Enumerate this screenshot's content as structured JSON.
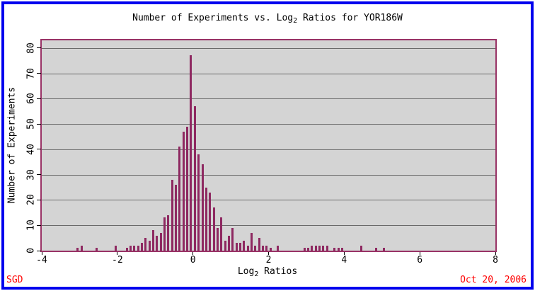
{
  "window": {
    "border_color": "#0000EE",
    "background": "#FFFFFF"
  },
  "header": {
    "title": {
      "pre": "Number of Experiments vs. Log",
      "sub": "2",
      "post": " Ratios for YOR186W"
    }
  },
  "axes": {
    "ylabel": "Number of Experiments",
    "xlabel": {
      "pre": "Log",
      "sub": "2",
      "post": " Ratios"
    }
  },
  "footer": {
    "credit": "SGD",
    "date": "Oct 20, 2006",
    "text_color": "#FF0000"
  },
  "chart_data": {
    "type": "bar",
    "title": "Number of Experiments vs. Log2 Ratios for YOR186W",
    "xlabel": "Log2 Ratios",
    "ylabel": "Number of Experiments",
    "xlim": [
      -4,
      8
    ],
    "ylim": [
      0,
      83
    ],
    "x_ticks": [
      -4,
      -2,
      0,
      2,
      4,
      6,
      8
    ],
    "y_ticks": [
      0,
      10,
      20,
      30,
      40,
      50,
      60,
      70,
      80
    ],
    "grid": "horizontal-only",
    "legend": "none",
    "bin_width": 0.1,
    "bar_color": "#8E2961",
    "frame_color": "#993366",
    "plot_bg": "#D4D4D4",
    "grid_color": "#6A6A6A",
    "x": [
      -3.05,
      -2.95,
      -2.55,
      -2.05,
      -1.75,
      -1.65,
      -1.55,
      -1.45,
      -1.35,
      -1.25,
      -1.15,
      -1.05,
      -0.95,
      -0.85,
      -0.75,
      -0.65,
      -0.55,
      -0.45,
      -0.35,
      -0.25,
      -0.15,
      -0.05,
      0.05,
      0.15,
      0.25,
      0.35,
      0.45,
      0.55,
      0.65,
      0.75,
      0.85,
      0.95,
      1.05,
      1.15,
      1.25,
      1.35,
      1.45,
      1.55,
      1.65,
      1.75,
      1.85,
      1.95,
      2.05,
      2.25,
      2.95,
      3.05,
      3.15,
      3.25,
      3.35,
      3.45,
      3.55,
      3.75,
      3.85,
      3.95,
      4.45,
      4.85,
      5.05
    ],
    "values": [
      1,
      2,
      1,
      2,
      1,
      2,
      2,
      2,
      3,
      5,
      4,
      8,
      6,
      7,
      13,
      14,
      28,
      26,
      41,
      47,
      49,
      77,
      57,
      38,
      34,
      25,
      23,
      17,
      9,
      13,
      4,
      6,
      9,
      3,
      3,
      4,
      2,
      7,
      2,
      5,
      2,
      2,
      1,
      2,
      1,
      1,
      2,
      2,
      2,
      2,
      2,
      1,
      1,
      1,
      2,
      1,
      1
    ]
  }
}
